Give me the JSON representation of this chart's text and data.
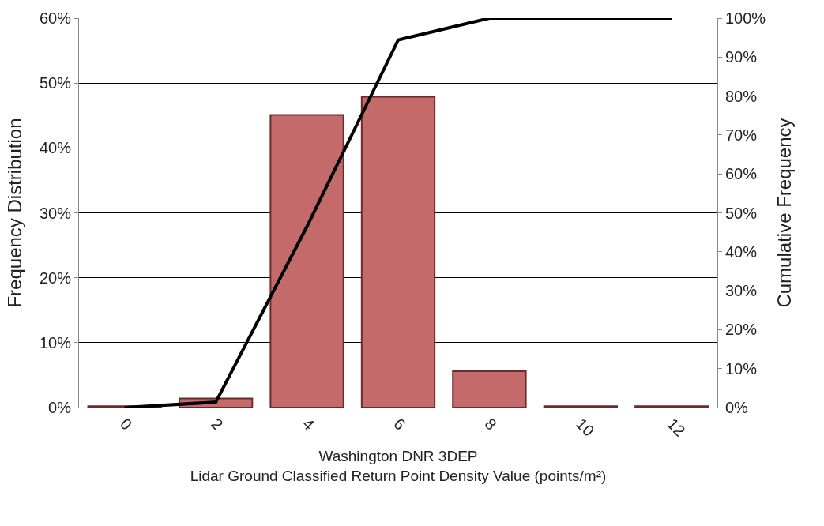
{
  "chart_data": {
    "type": "bar",
    "xlabel": "Washington DNR 3DEP\nLidar Ground Classified Return Point Density Value (points/m²)",
    "ylabel": "Frequency Distribution",
    "y2label": "Cumulative Frequency",
    "categories": [
      "0",
      "2",
      "4",
      "6",
      "8",
      "10",
      "12"
    ],
    "series": [
      {
        "color": "#c46a6a",
        "values": [
          0.2,
          1.4,
          45.1,
          47.9,
          5.6,
          0.2,
          0.2
        ]
      },
      {
        "type": "line",
        "axis": "y2",
        "color": "#000000",
        "values": [
          0,
          1.4,
          46.5,
          94.4,
          100,
          100,
          100
        ]
      }
    ],
    "ylim": [
      0,
      60
    ],
    "yticks": [
      {
        "value": 0,
        "label": "0%"
      },
      {
        "value": 10,
        "label": "10%"
      },
      {
        "value": 20,
        "label": "20%"
      },
      {
        "value": 30,
        "label": "30%"
      },
      {
        "value": 40,
        "label": "40%"
      },
      {
        "value": 50,
        "label": "50%"
      },
      {
        "value": 60,
        "label": "60%"
      }
    ],
    "y2lim": [
      0,
      100
    ],
    "y2ticks": [
      {
        "value": 0,
        "label": "0%"
      },
      {
        "value": 10,
        "label": "10%"
      },
      {
        "value": 20,
        "label": "20%"
      },
      {
        "value": 30,
        "label": "30%"
      },
      {
        "value": 40,
        "label": "40%"
      },
      {
        "value": 50,
        "label": "50%"
      },
      {
        "value": 60,
        "label": "60%"
      },
      {
        "value": 70,
        "label": "70%"
      },
      {
        "value": 80,
        "label": "80%"
      },
      {
        "value": 90,
        "label": "90%"
      },
      {
        "value": 100,
        "label": "100%"
      }
    ],
    "grid": "y",
    "legend": false,
    "marker": "none",
    "line_style": "solid"
  }
}
